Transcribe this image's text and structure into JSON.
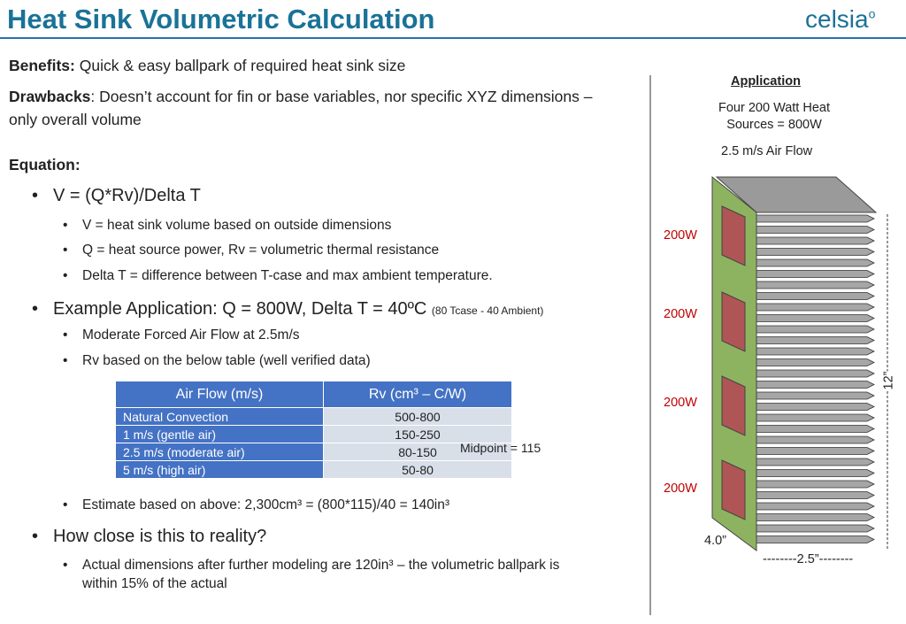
{
  "header": {
    "title": "Heat Sink Volumetric Calculation",
    "logo": "celsia"
  },
  "benefits": {
    "label": "Benefits:",
    "text": "Quick & easy ballpark of required heat sink size"
  },
  "drawbacks": {
    "label": "Drawbacks",
    "text": ": Doesn’t account for fin or base variables, nor specific XYZ dimensions – only overall volume"
  },
  "equation_heading": "Equation:",
  "bullets": [
    {
      "text": "V = (Q*Rv)/Delta T",
      "sub": [
        "V = heat sink volume based on outside dimensions",
        "Q = heat source power, Rv = volumetric thermal resistance",
        "Delta T = difference between T-case and max ambient temperature."
      ]
    },
    {
      "text": "Example Application: Q = 800W, Delta T = 40ºC",
      "note": "(80 Tcase - 40 Ambient)",
      "sub": [
        "Moderate Forced Air Flow at 2.5m/s",
        "Rv based on the below table (well verified data)",
        "Estimate based on above: 2,300cm³ = (800*115)/40 = 140in³"
      ]
    },
    {
      "text": "How close is this to reality?",
      "sub": [
        "Actual dimensions after further modeling are 120in³ – the volumetric ballpark is within 15% of the actual"
      ]
    }
  ],
  "table": {
    "headers": [
      "Air Flow (m/s)",
      "Rv (cm³ – C/W)"
    ],
    "rows": [
      [
        "Natural Convection",
        "500-800"
      ],
      [
        "1 m/s (gentle air)",
        "150-250"
      ],
      [
        "2.5 m/s (moderate air)",
        "80-150"
      ],
      [
        "5 m/s (high air)",
        "50-80"
      ]
    ],
    "note": "Midpoint = 115"
  },
  "figure": {
    "title": "Application",
    "text": "Four 200 Watt Heat Sources = 800W",
    "airflow": "2.5 m/s Air Flow",
    "source_labels": [
      "200W",
      "200W",
      "200W",
      "200W"
    ],
    "height": "12”",
    "depth": "4.0”",
    "width": "--------2.5”--------"
  }
}
